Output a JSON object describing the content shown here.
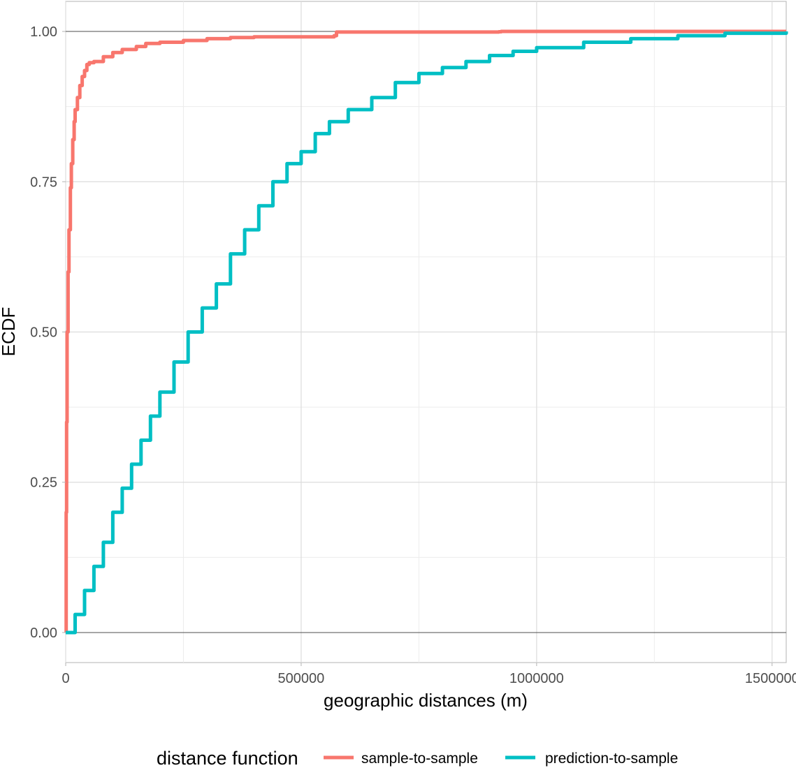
{
  "chart_data": {
    "type": "line",
    "title": "",
    "xlabel": "geographic distances (m)",
    "ylabel": "ECDF",
    "xlim": [
      0,
      1530000
    ],
    "ylim": [
      -0.05,
      1.05
    ],
    "x_ticks": [
      {
        "value": 0,
        "label": "0"
      },
      {
        "value": 500000,
        "label": "500000"
      },
      {
        "value": 1000000,
        "label": "1000000"
      },
      {
        "value": 1500000,
        "label": "1500000"
      }
    ],
    "y_ticks": [
      {
        "value": 0,
        "label": "0.00"
      },
      {
        "value": 0.25,
        "label": "0.25"
      },
      {
        "value": 0.5,
        "label": "0.50"
      },
      {
        "value": 0.75,
        "label": "0.75"
      },
      {
        "value": 1,
        "label": "1.00"
      }
    ],
    "grid": true,
    "legend": {
      "title": "distance function",
      "position": "bottom"
    },
    "series": [
      {
        "name": "sample-to-sample",
        "color": "#f8766d",
        "x": [
          0,
          1000,
          2000,
          3000,
          5000,
          7000,
          10000,
          12000,
          15000,
          18000,
          20000,
          25000,
          30000,
          35000,
          40000,
          45000,
          50000,
          60000,
          80000,
          100000,
          120000,
          150000,
          170000,
          200000,
          250000,
          300000,
          350000,
          400000,
          570000,
          575000,
          700000,
          920000,
          925000,
          1200000,
          1530000
        ],
        "y": [
          0,
          0.2,
          0.35,
          0.5,
          0.6,
          0.67,
          0.74,
          0.78,
          0.82,
          0.85,
          0.87,
          0.89,
          0.91,
          0.925,
          0.935,
          0.945,
          0.948,
          0.95,
          0.958,
          0.965,
          0.97,
          0.975,
          0.98,
          0.982,
          0.985,
          0.988,
          0.99,
          0.991,
          0.993,
          0.999,
          0.999,
          0.9995,
          1,
          1,
          1
        ]
      },
      {
        "name": "prediction-to-sample",
        "color": "#00bfc4",
        "x": [
          0,
          20000,
          40000,
          60000,
          80000,
          100000,
          120000,
          140000,
          160000,
          180000,
          200000,
          230000,
          260000,
          290000,
          320000,
          350000,
          380000,
          410000,
          440000,
          470000,
          500000,
          530000,
          560000,
          600000,
          650000,
          700000,
          750000,
          800000,
          850000,
          900000,
          950000,
          1000000,
          1100000,
          1200000,
          1300000,
          1400000,
          1530000
        ],
        "y": [
          0,
          0.03,
          0.07,
          0.11,
          0.15,
          0.2,
          0.24,
          0.28,
          0.32,
          0.36,
          0.4,
          0.45,
          0.5,
          0.54,
          0.58,
          0.63,
          0.67,
          0.71,
          0.75,
          0.78,
          0.8,
          0.83,
          0.85,
          0.87,
          0.89,
          0.915,
          0.93,
          0.94,
          0.95,
          0.96,
          0.967,
          0.973,
          0.982,
          0.988,
          0.993,
          0.997,
          1
        ]
      }
    ]
  }
}
